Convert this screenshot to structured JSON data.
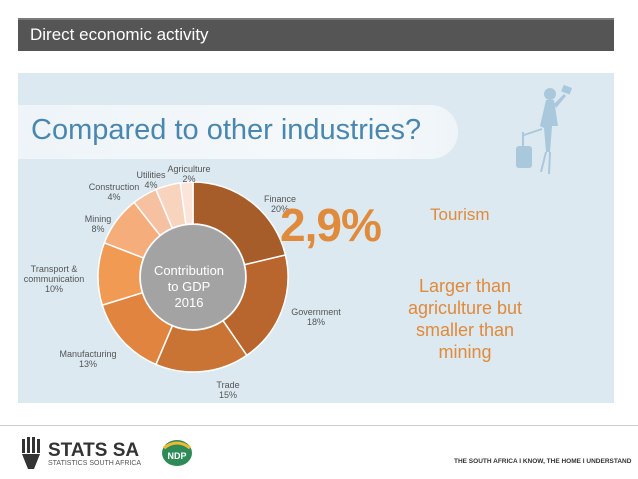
{
  "header": {
    "title": "Direct economic activity"
  },
  "banner": {
    "text": "Compared to other industries?"
  },
  "chart_data": {
    "type": "pie",
    "donut": true,
    "center_label": [
      "Contribution",
      "to GDP",
      "2016"
    ],
    "categories": [
      "Finance",
      "Government",
      "Trade",
      "Manufacturing",
      "Transport & communication",
      "Mining",
      "Construction",
      "Utilities",
      "Agriculture"
    ],
    "values": [
      20,
      18,
      15,
      13,
      10,
      8,
      4,
      4,
      2
    ],
    "labels": [
      {
        "name": [
          "Finance"
        ],
        "value": "20%"
      },
      {
        "name": [
          "Government"
        ],
        "value": "18%"
      },
      {
        "name": [
          "Trade"
        ],
        "value": "15%"
      },
      {
        "name": [
          "Manufacturing"
        ],
        "value": "13%"
      },
      {
        "name": [
          "Transport &",
          "communication"
        ],
        "value": "10%"
      },
      {
        "name": [
          "Mining"
        ],
        "value": "8%"
      },
      {
        "name": [
          "Construction"
        ],
        "value": "4%"
      },
      {
        "name": [
          "Utilities"
        ],
        "value": "4%"
      },
      {
        "name": [
          "Agriculture"
        ],
        "value": "2%"
      }
    ],
    "colors": [
      "#a65d2a",
      "#b8652e",
      "#c97434",
      "#e0843f",
      "#f09a54",
      "#f5ad7c",
      "#f6c1a0",
      "#f8d3bd",
      "#fbe5d8"
    ]
  },
  "highlight": {
    "value": "2,9%",
    "label": "Tourism",
    "comparison": [
      "Larger than",
      "agriculture but",
      "smaller than",
      "mining"
    ]
  },
  "footer": {
    "logo_text": "STATS SA",
    "logo_sub": "STATISTICS SOUTH AFRICA",
    "ndp_text": "NDP",
    "tagline": "THE SOUTH AFRICA I KNOW, THE HOME I UNDERSTAND"
  },
  "colors": {
    "accent": "#e08a3c",
    "banner_text": "#4a87b0",
    "panel": "#dce9f0",
    "header_bg": "#555555"
  }
}
